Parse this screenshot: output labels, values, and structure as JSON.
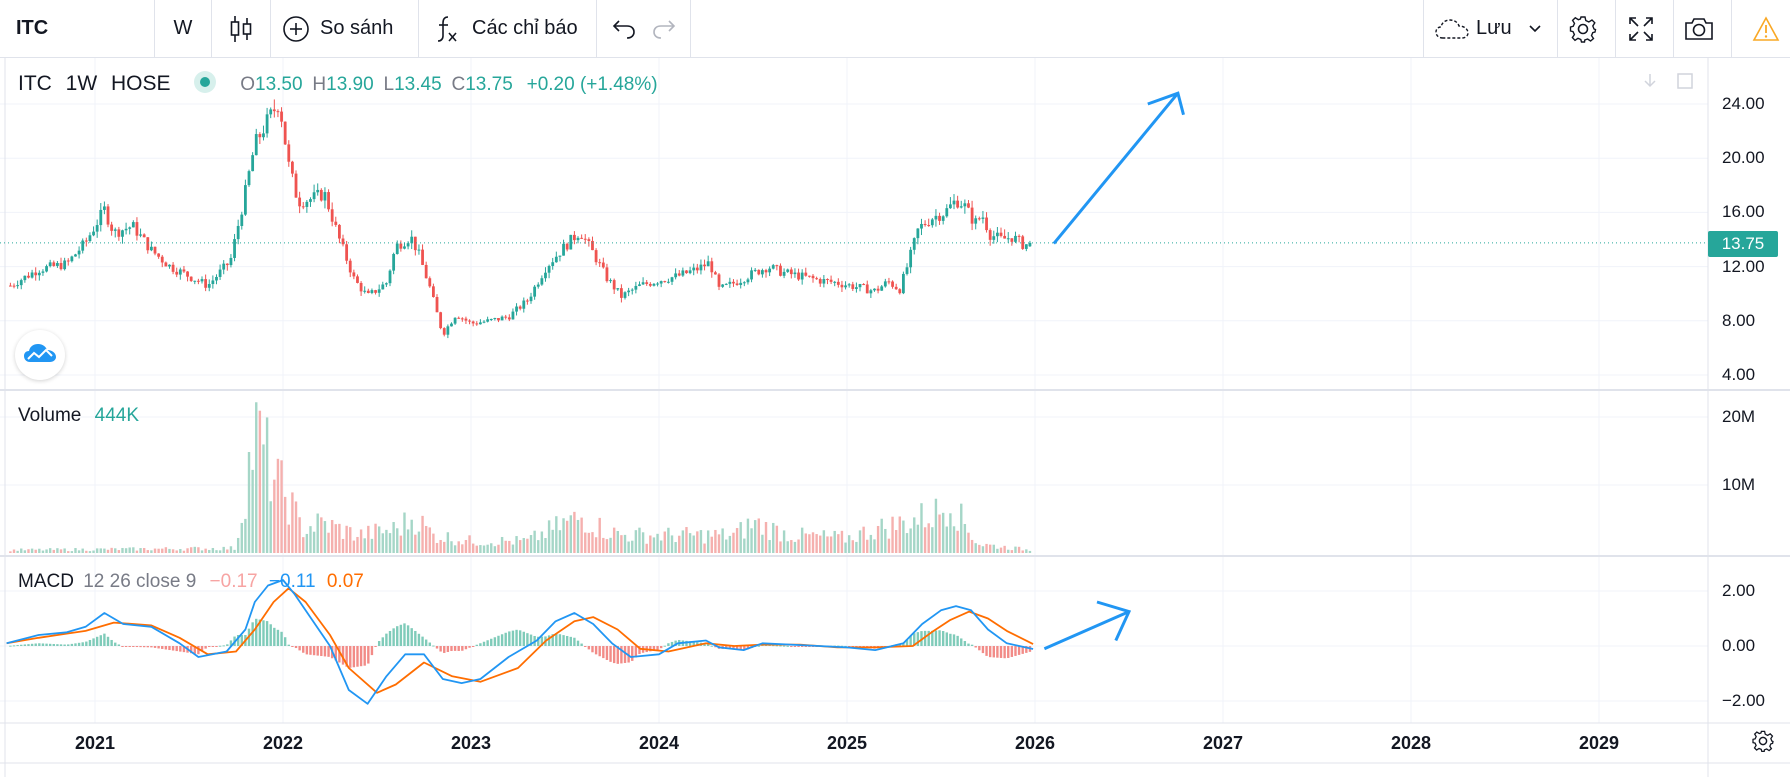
{
  "toolbar": {
    "symbol": "ITC",
    "interval": "W",
    "compare_label": "So sánh",
    "indicators_label": "Các chỉ báo",
    "save_label": "Lưu"
  },
  "legend": {
    "symbol": "ITC",
    "interval": "1W",
    "exchange": "HOSE",
    "open_label": "O",
    "open": "13.50",
    "high_label": "H",
    "high": "13.90",
    "low_label": "L",
    "low": "13.45",
    "close_label": "C",
    "close": "13.75",
    "change": "+0.20 (+1.48%)",
    "volume_title": "Volume",
    "volume_value": "444K",
    "macd_title": "MACD",
    "macd_params": "12 26 close 9",
    "macd_hist": "−0.17",
    "macd_line": "−0.11",
    "macd_signal": "0.07"
  },
  "price_tag": "13.75",
  "colors": {
    "up": "#26a69a",
    "down": "#ef5350",
    "macd_line": "#2196f3",
    "signal_line": "#ff6d00",
    "annotation": "#2196f3",
    "legend_values": "#26a69a"
  },
  "icons": [
    "candles-icon",
    "plus-circle-icon",
    "fx-icon",
    "undo-icon",
    "redo-icon",
    "cloud-icon",
    "chevron-down-icon",
    "gear-icon",
    "fullscreen-icon",
    "camera-icon",
    "warning-icon",
    "download-icon",
    "sync-icon",
    "tradingview-logo-icon"
  ],
  "chart_data": [
    {
      "type": "candlestick",
      "panel": "price",
      "interval": "1W",
      "y_ticks": [
        "24.00",
        "20.00",
        "16.00",
        "12.00",
        "8.00",
        "4.00"
      ],
      "y_tick_values": [
        24,
        20,
        16,
        12,
        8,
        4
      ],
      "ylim": [
        3.6,
        25.6
      ],
      "x_ticks": [
        "2021",
        "2022",
        "2023",
        "2024",
        "2025",
        "2026",
        "2027",
        "2028",
        "2029"
      ],
      "x_tick_values": [
        2021,
        2022,
        2023,
        2024,
        2025,
        2026,
        2027,
        2028,
        2029
      ],
      "xlim": [
        2020.53,
        2029.55
      ],
      "last_close": 13.75,
      "close_path": [
        [
          2020.55,
          10.6
        ],
        [
          2020.7,
          11.8
        ],
        [
          2020.85,
          12.2
        ],
        [
          2020.95,
          13.8
        ],
        [
          2021.05,
          16.2
        ],
        [
          2021.1,
          14.5
        ],
        [
          2021.2,
          15.0
        ],
        [
          2021.3,
          13.2
        ],
        [
          2021.4,
          12.0
        ],
        [
          2021.5,
          11.3
        ],
        [
          2021.6,
          10.6
        ],
        [
          2021.72,
          12.4
        ],
        [
          2021.8,
          17.5
        ],
        [
          2021.85,
          21.0
        ],
        [
          2021.92,
          22.8
        ],
        [
          2021.98,
          24.2
        ],
        [
          2022.03,
          19.5
        ],
        [
          2022.08,
          16.8
        ],
        [
          2022.15,
          17.0
        ],
        [
          2022.22,
          17.4
        ],
        [
          2022.3,
          14.0
        ],
        [
          2022.38,
          11.0
        ],
        [
          2022.45,
          9.8
        ],
        [
          2022.55,
          10.8
        ],
        [
          2022.6,
          13.5
        ],
        [
          2022.68,
          14.2
        ],
        [
          2022.72,
          13.0
        ],
        [
          2022.78,
          10.5
        ],
        [
          2022.85,
          7.0
        ],
        [
          2022.92,
          8.5
        ],
        [
          2023.0,
          7.8
        ],
        [
          2023.1,
          8.0
        ],
        [
          2023.2,
          8.3
        ],
        [
          2023.3,
          9.5
        ],
        [
          2023.4,
          12.0
        ],
        [
          2023.5,
          13.5
        ],
        [
          2023.58,
          14.6
        ],
        [
          2023.65,
          13.0
        ],
        [
          2023.72,
          11.2
        ],
        [
          2023.8,
          9.8
        ],
        [
          2023.9,
          10.6
        ],
        [
          2024.0,
          11.0
        ],
        [
          2024.1,
          11.3
        ],
        [
          2024.2,
          11.8
        ],
        [
          2024.27,
          12.3
        ],
        [
          2024.32,
          10.3
        ],
        [
          2024.4,
          10.8
        ],
        [
          2024.5,
          11.5
        ],
        [
          2024.58,
          12.0
        ],
        [
          2024.65,
          11.6
        ],
        [
          2024.75,
          11.3
        ],
        [
          2024.85,
          11.0
        ],
        [
          2024.95,
          10.8
        ],
        [
          2025.05,
          10.5
        ],
        [
          2025.15,
          10.2
        ],
        [
          2025.22,
          10.9
        ],
        [
          2025.28,
          10.3
        ],
        [
          2025.32,
          12.0
        ],
        [
          2025.38,
          14.8
        ],
        [
          2025.45,
          15.6
        ],
        [
          2025.52,
          16.0
        ],
        [
          2025.58,
          16.9
        ],
        [
          2025.62,
          16.6
        ],
        [
          2025.68,
          15.2
        ],
        [
          2025.72,
          15.8
        ],
        [
          2025.76,
          14.4
        ],
        [
          2025.82,
          14.0
        ],
        [
          2025.88,
          14.2
        ],
        [
          2025.94,
          13.6
        ],
        [
          2025.99,
          13.75
        ]
      ]
    },
    {
      "type": "bar",
      "panel": "volume",
      "y_ticks": [
        "20M",
        "10M"
      ],
      "y_tick_values": [
        20000000,
        10000000
      ],
      "ylim": [
        0,
        21300000
      ],
      "last_value": 444000,
      "volume_path": [
        [
          2020.55,
          500000
        ],
        [
          2021.75,
          800000
        ],
        [
          2021.8,
          11000000
        ],
        [
          2021.85,
          20000000
        ],
        [
          2021.9,
          17000000
        ],
        [
          2021.96,
          12000000
        ],
        [
          2022.03,
          9000000
        ],
        [
          2022.1,
          4000000
        ],
        [
          2022.2,
          5000000
        ],
        [
          2022.4,
          3000000
        ],
        [
          2022.6,
          4000000
        ],
        [
          2022.7,
          6000000
        ],
        [
          2022.8,
          3000000
        ],
        [
          2023.0,
          2000000
        ],
        [
          2023.3,
          2000000
        ],
        [
          2023.5,
          5000000
        ],
        [
          2023.6,
          6000000
        ],
        [
          2023.7,
          4000000
        ],
        [
          2023.8,
          3000000
        ],
        [
          2024.2,
          3000000
        ],
        [
          2024.4,
          3000000
        ],
        [
          2024.5,
          5000000
        ],
        [
          2024.7,
          3000000
        ],
        [
          2025.0,
          2500000
        ],
        [
          2025.15,
          4000000
        ],
        [
          2025.3,
          5000000
        ],
        [
          2025.4,
          6000000
        ],
        [
          2025.5,
          7000000
        ],
        [
          2025.55,
          9500000
        ],
        [
          2025.6,
          6000000
        ],
        [
          2025.7,
          1500000
        ],
        [
          2025.99,
          444000
        ]
      ]
    },
    {
      "type": "line",
      "panel": "macd",
      "y_ticks": [
        "2.00",
        "0.00",
        "−2.00"
      ],
      "y_tick_values": [
        2,
        0,
        -2
      ],
      "ylim": [
        -2.4,
        2.65
      ],
      "series": [
        {
          "name": "MACD",
          "color": "#2196f3",
          "points": [
            [
              2020.53,
              0.1
            ],
            [
              2020.7,
              0.4
            ],
            [
              2020.85,
              0.5
            ],
            [
              2020.95,
              0.7
            ],
            [
              2021.05,
              1.2
            ],
            [
              2021.15,
              0.8
            ],
            [
              2021.3,
              0.7
            ],
            [
              2021.45,
              0.1
            ],
            [
              2021.55,
              -0.4
            ],
            [
              2021.7,
              -0.2
            ],
            [
              2021.8,
              0.6
            ],
            [
              2021.85,
              1.6
            ],
            [
              2021.92,
              2.2
            ],
            [
              2022.0,
              2.4
            ],
            [
              2022.06,
              1.9
            ],
            [
              2022.15,
              1.0
            ],
            [
              2022.25,
              0.0
            ],
            [
              2022.35,
              -1.6
            ],
            [
              2022.45,
              -2.1
            ],
            [
              2022.55,
              -1.1
            ],
            [
              2022.65,
              -0.3
            ],
            [
              2022.75,
              -0.3
            ],
            [
              2022.85,
              -1.2
            ],
            [
              2022.95,
              -1.35
            ],
            [
              2023.05,
              -1.2
            ],
            [
              2023.2,
              -0.4
            ],
            [
              2023.35,
              0.2
            ],
            [
              2023.45,
              0.9
            ],
            [
              2023.55,
              1.2
            ],
            [
              2023.65,
              0.8
            ],
            [
              2023.75,
              0.1
            ],
            [
              2023.85,
              -0.4
            ],
            [
              2024.0,
              -0.3
            ],
            [
              2024.1,
              0.1
            ],
            [
              2024.25,
              0.2
            ],
            [
              2024.32,
              -0.05
            ],
            [
              2024.45,
              -0.15
            ],
            [
              2024.55,
              0.1
            ],
            [
              2024.7,
              0.05
            ],
            [
              2024.85,
              0.0
            ],
            [
              2025.0,
              -0.05
            ],
            [
              2025.15,
              -0.15
            ],
            [
              2025.3,
              0.1
            ],
            [
              2025.4,
              0.8
            ],
            [
              2025.5,
              1.3
            ],
            [
              2025.58,
              1.45
            ],
            [
              2025.66,
              1.3
            ],
            [
              2025.75,
              0.6
            ],
            [
              2025.85,
              0.1
            ],
            [
              2025.99,
              -0.11
            ]
          ]
        },
        {
          "name": "Signal",
          "color": "#ff6d00",
          "points": [
            [
              2020.53,
              0.1
            ],
            [
              2020.7,
              0.3
            ],
            [
              2020.85,
              0.45
            ],
            [
              2020.95,
              0.55
            ],
            [
              2021.1,
              0.85
            ],
            [
              2021.3,
              0.75
            ],
            [
              2021.45,
              0.3
            ],
            [
              2021.6,
              -0.3
            ],
            [
              2021.75,
              -0.2
            ],
            [
              2021.85,
              0.6
            ],
            [
              2021.95,
              1.6
            ],
            [
              2022.03,
              2.1
            ],
            [
              2022.12,
              1.6
            ],
            [
              2022.25,
              0.4
            ],
            [
              2022.35,
              -0.8
            ],
            [
              2022.5,
              -1.7
            ],
            [
              2022.6,
              -1.4
            ],
            [
              2022.75,
              -0.6
            ],
            [
              2022.9,
              -1.1
            ],
            [
              2023.05,
              -1.3
            ],
            [
              2023.25,
              -0.8
            ],
            [
              2023.4,
              0.2
            ],
            [
              2023.55,
              0.9
            ],
            [
              2023.65,
              1.05
            ],
            [
              2023.78,
              0.6
            ],
            [
              2023.9,
              -0.1
            ],
            [
              2024.05,
              -0.2
            ],
            [
              2024.25,
              0.1
            ],
            [
              2024.4,
              0.0
            ],
            [
              2024.55,
              0.05
            ],
            [
              2024.75,
              0.05
            ],
            [
              2024.95,
              -0.05
            ],
            [
              2025.15,
              -0.05
            ],
            [
              2025.35,
              0.0
            ],
            [
              2025.45,
              0.5
            ],
            [
              2025.55,
              0.95
            ],
            [
              2025.65,
              1.25
            ],
            [
              2025.75,
              1.0
            ],
            [
              2025.85,
              0.55
            ],
            [
              2025.99,
              0.07
            ]
          ]
        }
      ]
    }
  ]
}
